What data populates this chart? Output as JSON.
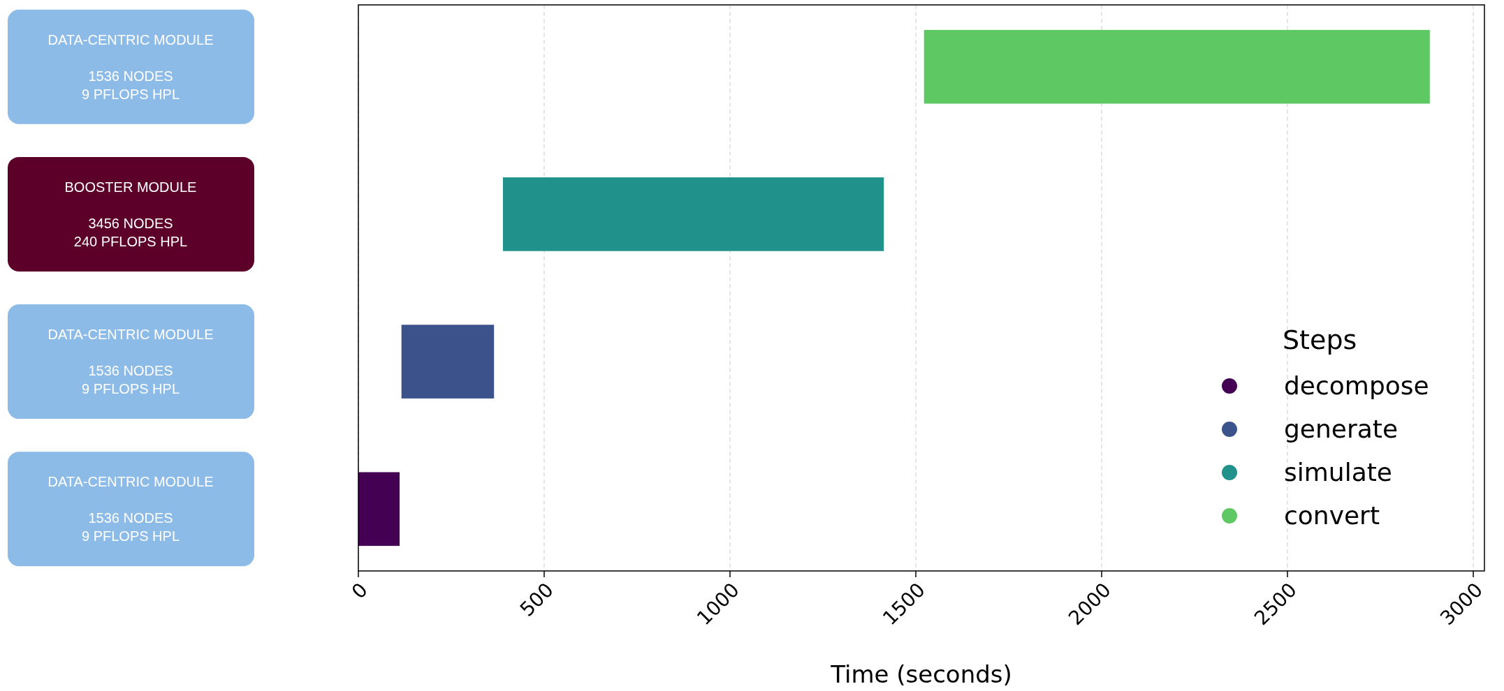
{
  "chart_data": {
    "type": "bar",
    "orientation": "horizontal",
    "xlabel": "Time (seconds)",
    "legend_title": "Steps",
    "legend": "bottom right",
    "marker": "circle",
    "grid": "x",
    "line_style": "dashed",
    "categories": [
      "DATA-CENTRIC MODULE\n\n1536 NODES\n9 PFLOPS HPL",
      "BOOSTER MODULE\n\n3456 NODES\n240 PFLOPS HPL",
      "DATA-CENTRIC MODULE\n\n1536 NODES\n9 PFLOPS HPL",
      "DATA-CENTRIC MODULE\n\n1536 NODES\n9 PFLOPS HPL"
    ],
    "xlim": [
      0,
      3030
    ],
    "xticks": [
      0,
      500,
      1000,
      1500,
      2000,
      2500,
      3000
    ],
    "series": [
      {
        "name": "decompose",
        "color": "#440154",
        "base": [
          null,
          null,
          null,
          0
        ],
        "values": [
          null,
          null,
          null,
          111
        ]
      },
      {
        "name": "generate",
        "color": "#3b528b",
        "base": [
          null,
          null,
          116,
          null
        ],
        "values": [
          null,
          null,
          249,
          null
        ]
      },
      {
        "name": "simulate",
        "color": "#21918c",
        "base": [
          null,
          389,
          null,
          null
        ],
        "values": [
          null,
          1025,
          null,
          null
        ]
      },
      {
        "name": "convert",
        "color": "#5ec962",
        "base": [
          1522,
          null,
          null,
          null
        ],
        "values": [
          1361,
          null,
          null,
          null
        ]
      }
    ]
  }
}
